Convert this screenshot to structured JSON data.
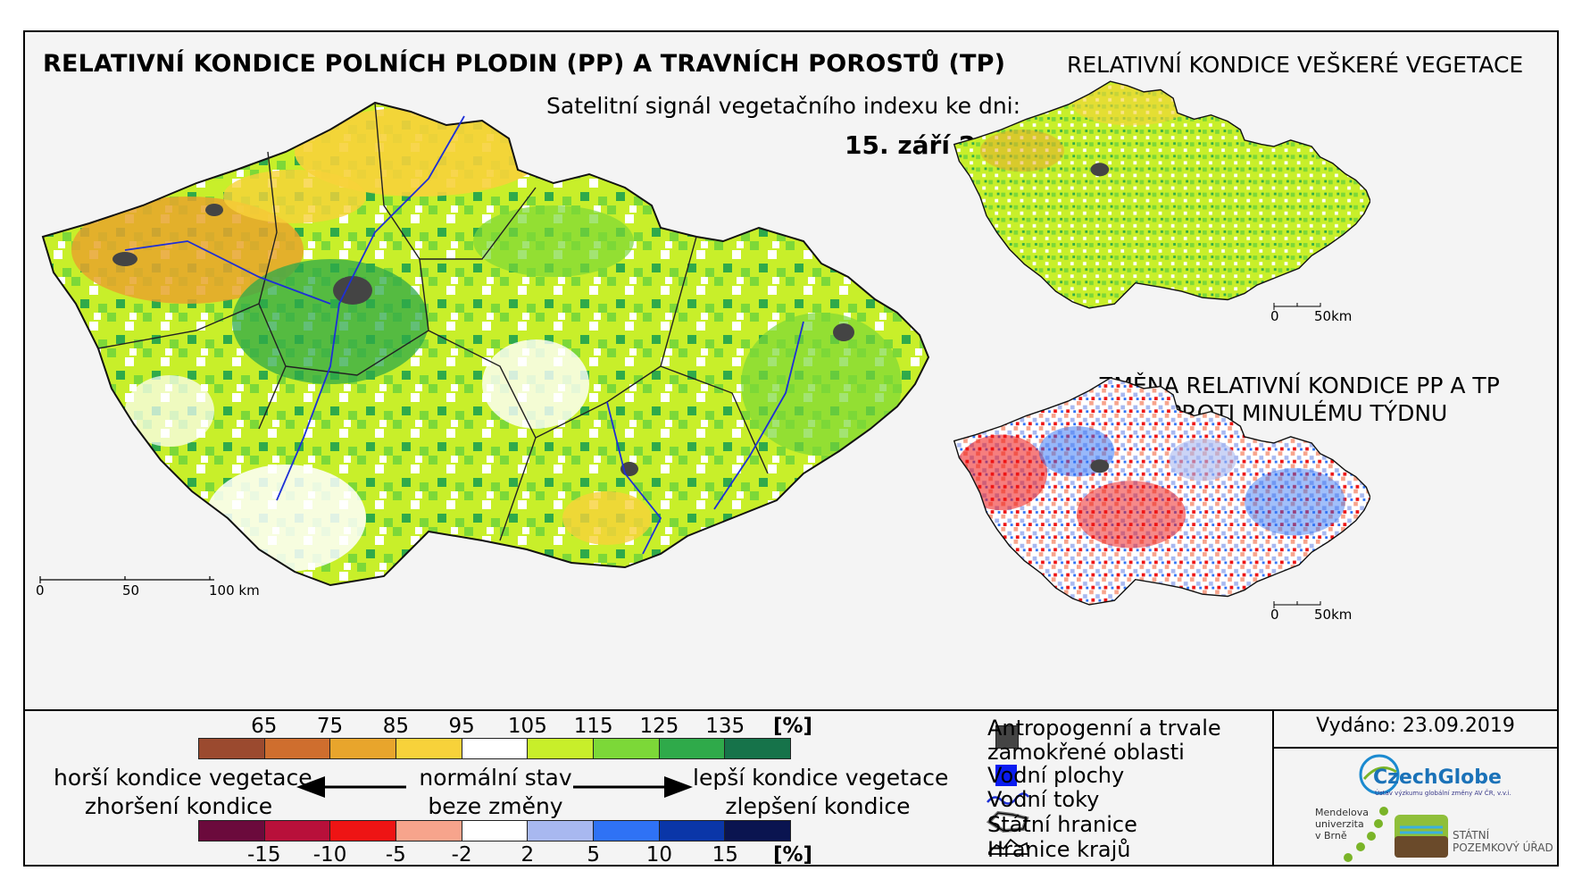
{
  "title_main": "RELATIVNÍ KONDICE POLNÍCH PLODIN (PP) A TRAVNÍCH POROSTŮ (TP)",
  "subtitle": "Satelitní signál vegetačního indexu ke dni:",
  "date": "15. září 2019",
  "title_veg": "RELATIVNÍ KONDICE VEŠKERÉ VEGETACE",
  "title_change_line1": "ZMĚNA RELATIVNÍ KONDICE PP A TP",
  "title_change_line2": "OPROTI MINULÉMU TÝDNU",
  "main_scale": {
    "s0": "0",
    "s1": "50",
    "s2": "100 km"
  },
  "inset_scale": {
    "s0": "0",
    "s1": "50km"
  },
  "condition_scale": {
    "ticks": [
      "65",
      "75",
      "85",
      "95",
      "105",
      "115",
      "125",
      "135"
    ],
    "unit": "[%]",
    "colors": [
      "#9b4a2f",
      "#cf6e2e",
      "#e8a52c",
      "#f7d23a",
      "#ffffff",
      "#c8ef2a",
      "#7cd838",
      "#2faa4a",
      "#16734a"
    ]
  },
  "change_scale": {
    "ticks": [
      "-15",
      "-10",
      "-5",
      "-2",
      "2",
      "5",
      "10",
      "15"
    ],
    "unit": "[%]",
    "colors": [
      "#6b0a3c",
      "#b8103a",
      "#ee1414",
      "#f7a48c",
      "#ffffff",
      "#a8b8f0",
      "#2f72f5",
      "#0a36a8",
      "#0a1450"
    ]
  },
  "legend_text": {
    "worse": "horší kondice vegetace",
    "worse_change": "zhoršení kondice",
    "normal": "normální stav",
    "normal_change": "beze změny",
    "better": "lepší kondice vegetace",
    "better_change": "zlepšení kondice"
  },
  "symbols": {
    "anthropogenic_1": "Antropogenní a trvale",
    "anthropogenic_2": "zamokřené oblasti",
    "water_areas": "Vodní plochy",
    "rivers": "Vodní toky",
    "state_border": "Státní hranice",
    "region_border": "Hranice krajů"
  },
  "issued": "Vydáno: 23.09.2019",
  "logos": {
    "czechglobe": "CzechGlobe",
    "czechglobe_sub": "Ústav výzkumu globální změny AV ČR, v.v.i.",
    "mendel_1": "Mendelova",
    "mendel_2": "univerzita",
    "mendel_3": "v Brně",
    "spu_1": "STÁTNÍ",
    "spu_2": "POZEMKOVÝ ÚŘAD"
  }
}
